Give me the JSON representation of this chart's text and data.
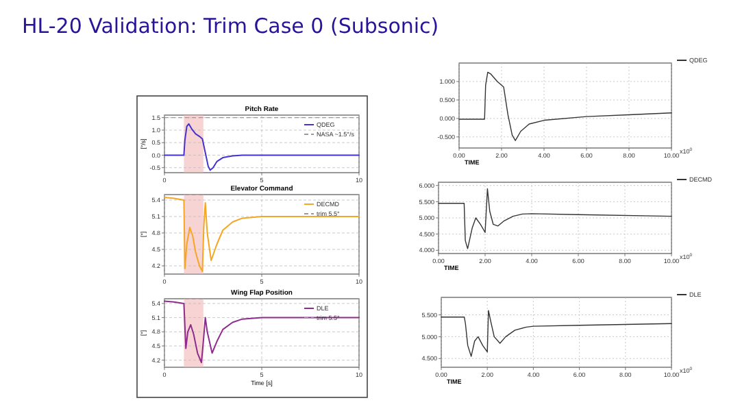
{
  "chart_data": [
    {
      "type": "line",
      "title": "Pitch Rate",
      "annotations": [
        "HL-20 Validation: Trim Case 0 (Subsonic)"
      ],
      "ylabel": "[°/s]",
      "xlim": [
        0,
        10
      ],
      "xticks": [
        0,
        5,
        10
      ],
      "ylim": [
        -0.7,
        1.6
      ],
      "yticks": [
        -0.5,
        {
          "value": 0,
          "label": "0.0"
        },
        0.5,
        {
          "value": 1,
          "label": "1.0"
        },
        1.5
      ],
      "grid": true,
      "legend": "top right",
      "series": [
        {
          "name": "QDEG",
          "color": "#4433cc",
          "x": [
            0,
            1,
            1.05,
            1.15,
            1.25,
            1.4,
            1.6,
            1.8,
            1.95,
            2.1,
            2.25,
            2.35,
            2.5,
            2.7,
            3,
            3.5,
            4,
            5,
            10
          ],
          "values": [
            0,
            0,
            0.6,
            1.15,
            1.25,
            1.05,
            0.85,
            0.75,
            0.65,
            0.1,
            -0.45,
            -0.6,
            -0.5,
            -0.25,
            -0.1,
            -0.03,
            0,
            0,
            0
          ]
        }
      ],
      "ref_lines": [
        {
          "axis": "y",
          "value": 1.5,
          "label": "NASA ~1.5°/s",
          "color": "#999999",
          "line_style": "dashed"
        }
      ],
      "bands": [
        {
          "axis": "x",
          "from": 1,
          "to": 2,
          "color": "#f4b6b6"
        }
      ]
    },
    {
      "type": "line",
      "title": "Elevator Command",
      "ylabel": "[°]",
      "xlim": [
        0,
        10
      ],
      "xticks": [
        0,
        5,
        10
      ],
      "ylim": [
        4.05,
        5.5
      ],
      "yticks": [
        4.2,
        4.5,
        4.8,
        5.1,
        5.4
      ],
      "grid": true,
      "legend": "top right",
      "series": [
        {
          "name": "DECMD",
          "color": "#f5a623",
          "x": [
            0,
            0.5,
            1,
            1.05,
            1.15,
            1.3,
            1.45,
            1.6,
            1.8,
            1.95,
            2.02,
            2.1,
            2.2,
            2.4,
            2.7,
            3,
            3.5,
            4,
            5,
            10
          ],
          "values": [
            5.45,
            5.43,
            5.4,
            4.15,
            4.6,
            4.9,
            4.75,
            4.45,
            4.2,
            4.1,
            4.9,
            5.35,
            4.8,
            4.3,
            4.6,
            4.85,
            5,
            5.07,
            5.1,
            5.1
          ]
        }
      ],
      "ref_lines": [
        {
          "axis": "y",
          "value": 5.5,
          "label": "trim 5.5°",
          "color": "#999999",
          "line_style": "dashed"
        }
      ],
      "bands": [
        {
          "axis": "x",
          "from": 1,
          "to": 2,
          "color": "#f4b6b6"
        }
      ]
    },
    {
      "type": "line",
      "title": "Wing Flap Position",
      "ylabel": "[°]",
      "xlabel": "Time [s]",
      "xlim": [
        0,
        10
      ],
      "xticks": [
        0,
        5,
        10
      ],
      "ylim": [
        4.05,
        5.5
      ],
      "yticks": [
        4.2,
        4.5,
        4.8,
        5.1,
        5.4
      ],
      "grid": true,
      "legend": "top right",
      "series": [
        {
          "name": "DLE",
          "color": "#8e2c8e",
          "x": [
            0,
            0.5,
            1,
            1.1,
            1.2,
            1.35,
            1.5,
            1.7,
            1.9,
            2,
            2.1,
            2.2,
            2.45,
            2.7,
            3,
            3.5,
            4,
            5,
            10
          ],
          "values": [
            5.45,
            5.43,
            5.4,
            4.45,
            4.8,
            4.95,
            4.75,
            4.35,
            4.15,
            4.6,
            5.1,
            4.8,
            4.35,
            4.6,
            4.85,
            5,
            5.07,
            5.1,
            5.1
          ]
        }
      ],
      "ref_lines": [
        {
          "axis": "y",
          "value": 5.5,
          "label": "trim 5.5°",
          "color": "#999999",
          "line_style": "dashed"
        }
      ],
      "bands": [
        {
          "axis": "x",
          "from": 1,
          "to": 2,
          "color": "#f4b6b6"
        }
      ]
    },
    {
      "type": "line",
      "xlabel": "TIME",
      "annotations": [
        "x10$^{0}$"
      ],
      "xlim": [
        0,
        10
      ],
      "xticks": [
        {
          "value": 0,
          "label": "0.00"
        },
        {
          "value": 2,
          "label": "2.00"
        },
        {
          "value": 4,
          "label": "4.00"
        },
        {
          "value": 6,
          "label": "6.00"
        },
        {
          "value": 8,
          "label": "8.00"
        },
        {
          "value": 10,
          "label": "10.00"
        }
      ],
      "ylim": [
        -0.8,
        1.5
      ],
      "yticks": [
        {
          "value": -0.5,
          "label": "-0.500"
        },
        {
          "value": 0,
          "label": "0.000"
        },
        {
          "value": 0.5,
          "label": "0.500"
        },
        {
          "value": 1,
          "label": "1.000"
        }
      ],
      "grid": true,
      "legend": "right",
      "series": [
        {
          "name": "QDEG",
          "color": "#333333",
          "x": [
            0,
            1.2,
            1.25,
            1.35,
            1.5,
            1.8,
            2.1,
            2.3,
            2.5,
            2.65,
            2.9,
            3.3,
            4,
            6,
            8,
            10
          ],
          "values": [
            -0.02,
            -0.02,
            0.9,
            1.25,
            1.2,
            1,
            0.85,
            0.1,
            -0.45,
            -0.6,
            -0.35,
            -0.15,
            -0.05,
            0.05,
            0.1,
            0.15
          ]
        }
      ]
    },
    {
      "type": "line",
      "xlabel": "TIME",
      "annotations": [
        "x10$^{0}$"
      ],
      "xlim": [
        0,
        10
      ],
      "xticks": [
        {
          "value": 0,
          "label": "0.00"
        },
        {
          "value": 2,
          "label": "2.00"
        },
        {
          "value": 4,
          "label": "4.00"
        },
        {
          "value": 6,
          "label": "6.00"
        },
        {
          "value": 8,
          "label": "8.00"
        },
        {
          "value": 10,
          "label": "10.00"
        }
      ],
      "ylim": [
        3.9,
        6.1
      ],
      "yticks": [
        {
          "value": 4,
          "label": "4.000"
        },
        {
          "value": 4.5,
          "label": "4.500"
        },
        {
          "value": 5,
          "label": "5.000"
        },
        {
          "value": 5.5,
          "label": "5.500"
        },
        {
          "value": 6,
          "label": "6.000"
        }
      ],
      "grid": true,
      "legend": "right",
      "series": [
        {
          "name": "DECMD",
          "color": "#333333",
          "x": [
            0,
            1.1,
            1.15,
            1.25,
            1.45,
            1.6,
            1.8,
            2,
            2.1,
            2.2,
            2.35,
            2.55,
            2.8,
            3.2,
            3.6,
            4,
            6,
            10
          ],
          "values": [
            5.45,
            5.45,
            4.3,
            4.05,
            4.7,
            5,
            4.8,
            4.55,
            5.9,
            5.2,
            4.8,
            4.75,
            4.9,
            5.05,
            5.12,
            5.13,
            5.1,
            5.05
          ]
        }
      ]
    },
    {
      "type": "line",
      "xlabel": "TIME",
      "annotations": [
        "x10$^{0}$"
      ],
      "xlim": [
        0,
        10
      ],
      "xticks": [
        {
          "value": 0,
          "label": "0.00"
        },
        {
          "value": 2,
          "label": "2.00"
        },
        {
          "value": 4,
          "label": "4.00"
        },
        {
          "value": 6,
          "label": "6.00"
        },
        {
          "value": 8,
          "label": "8.00"
        },
        {
          "value": 10,
          "label": "10.00"
        }
      ],
      "ylim": [
        4.3,
        5.9
      ],
      "yticks": [
        {
          "value": 4.5,
          "label": "4.500"
        },
        {
          "value": 5,
          "label": "5.000"
        },
        {
          "value": 5.5,
          "label": "5.500"
        }
      ],
      "grid": true,
      "legend": "right",
      "series": [
        {
          "name": "DLE",
          "color": "#333333",
          "x": [
            0,
            1,
            1.05,
            1.15,
            1.3,
            1.45,
            1.6,
            1.8,
            2,
            2.05,
            2.15,
            2.3,
            2.55,
            2.8,
            3.2,
            3.7,
            4,
            6,
            10
          ],
          "values": [
            5.45,
            5.45,
            5.3,
            4.8,
            4.55,
            4.9,
            5.0,
            4.8,
            4.65,
            5.6,
            5.35,
            5,
            4.85,
            5,
            5.15,
            5.22,
            5.24,
            5.26,
            5.3
          ]
        }
      ]
    }
  ]
}
